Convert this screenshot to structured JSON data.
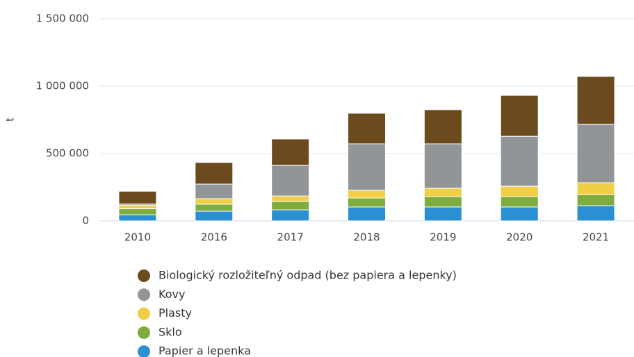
{
  "chart_data": {
    "type": "stacked_bar",
    "y_label": "t",
    "categories": [
      "2010",
      "2016",
      "2017",
      "2018",
      "2019",
      "2020",
      "2021"
    ],
    "series": [
      {
        "name": "Papier a lepenka",
        "color": "#2b8fd4",
        "values": [
          45000,
          72000,
          82000,
          103000,
          103000,
          103000,
          113000
        ]
      },
      {
        "name": "Sklo",
        "color": "#7fac3e",
        "values": [
          45000,
          52000,
          62000,
          67000,
          77000,
          77000,
          82000
        ]
      },
      {
        "name": "Plasty",
        "color": "#f0ce45",
        "values": [
          25000,
          41000,
          41000,
          57000,
          62000,
          77000,
          88000
        ]
      },
      {
        "name": "Kovy",
        "color": "#919598",
        "values": [
          10000,
          108000,
          227000,
          345000,
          330000,
          371000,
          433000
        ]
      },
      {
        "name": "Biologický rozložiteľný odpad (bez papiera a lepenky)",
        "color": "#6b4a1e",
        "values": [
          95000,
          160000,
          196000,
          227000,
          253000,
          304000,
          356000
        ]
      }
    ],
    "ylim": [
      0,
      1500000
    ],
    "yticks": [
      0,
      {
        "value": 500000,
        "label": "500 000"
      },
      {
        "value": 1000000,
        "label": "1 000 000"
      },
      {
        "value": 1500000,
        "label": "1 500 000"
      }
    ],
    "grid": true
  }
}
